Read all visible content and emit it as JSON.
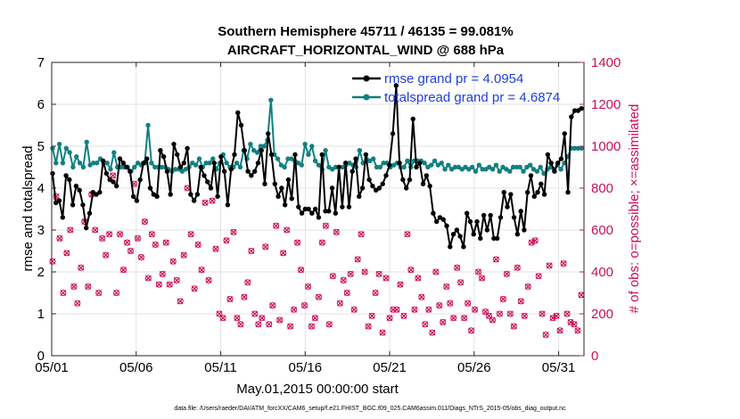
{
  "chart_data": {
    "type": "line",
    "title_line1": "Southern Hemisphere 45711 / 46135 = 99.081%",
    "title_line2": "AIRCRAFT_HORIZONTAL_WIND @ 688 hPa",
    "xlabel": "May.01,2015 00:00:00 start",
    "ylabel": "rmse and totalspread",
    "ylabel_right": "# of obs: o=possible; ×=assimilated",
    "xlim": [
      0,
      31.5
    ],
    "ylim": [
      0,
      7
    ],
    "ylim_right": [
      0,
      1400
    ],
    "x_tick_values": [
      0,
      5,
      10,
      15,
      20,
      25,
      30
    ],
    "x_tick_labels": [
      "05/01",
      "05/06",
      "05/11",
      "05/16",
      "05/21",
      "05/26",
      "05/31"
    ],
    "y_ticks": [
      "0",
      "1",
      "2",
      "3",
      "4",
      "5",
      "6",
      "7"
    ],
    "y_ticks_right": [
      "0",
      "200",
      "400",
      "600",
      "800",
      "1000",
      "1200",
      "1400"
    ],
    "legend_position": "top-right",
    "colors": {
      "rmse": "#000000",
      "spread": "#118080",
      "obs": "#c8105a",
      "legend_text": "#1f3fd8"
    },
    "series": [
      {
        "name": "rmse grand pr = 4.0954",
        "values": [
          4.35,
          3.65,
          3.7,
          3.3,
          4.3,
          4.2,
          3.6,
          4.05,
          3.95,
          3.6,
          3.05,
          3.4,
          3.9,
          3.85,
          3.9,
          4.65,
          4.35,
          4.2,
          4.15,
          4.05,
          4.7,
          4.6,
          4.5,
          4.4,
          3.8,
          3.7,
          4.2,
          4.6,
          4.7,
          4.0,
          3.85,
          3.8,
          4.9,
          4.75,
          4.4,
          3.85,
          5.05,
          4.8,
          4.5,
          4.6,
          4.95,
          3.85,
          3.7,
          3.85,
          4.5,
          4.3,
          4.15,
          4.0,
          4.6,
          3.8,
          4.75,
          4.4,
          3.6,
          4.45,
          4.8,
          5.8,
          5.5,
          4.9,
          4.4,
          4.3,
          4.4,
          4.6,
          4.9,
          4.1,
          5.3,
          4.8,
          4.1,
          3.8,
          4.0,
          3.6,
          4.2,
          3.75,
          4.8,
          3.55,
          3.4,
          3.5,
          3.5,
          3.4,
          3.5,
          3.3,
          4.8,
          3.45,
          3.45,
          4.0,
          3.4,
          4.5,
          3.55,
          4.6,
          3.55,
          4.4,
          4.7,
          3.8,
          4.0,
          4.8,
          4.2,
          4.05,
          3.95,
          4.0,
          4.1,
          4.3,
          4.55,
          5.3,
          6.45,
          4.6,
          4.2,
          4.0,
          4.2,
          5.65,
          4.5,
          4.6,
          4.1,
          4.3,
          4.05,
          3.4,
          3.2,
          3.3,
          3.25,
          3.1,
          2.6,
          2.9,
          3.0,
          2.85,
          2.6,
          3.4,
          3.2,
          2.9,
          3.2,
          2.8,
          3.35,
          3.0,
          3.35,
          2.8,
          2.8,
          3.3,
          3.9,
          3.55,
          3.85,
          3.3,
          2.9,
          3.45,
          3.0,
          3.9,
          4.3,
          3.8,
          3.9,
          4.1,
          3.85,
          4.8,
          4.6,
          4.4,
          4.6,
          4.7,
          5.3,
          3.9,
          5.7,
          5.85,
          5.85,
          5.9
        ]
      },
      {
        "name": "totalspread grand pr = 4.6874",
        "values": [
          4.95,
          4.6,
          5.05,
          4.6,
          4.95,
          4.85,
          4.5,
          4.75,
          4.6,
          4.5,
          5.1,
          4.55,
          4.6,
          4.6,
          4.7,
          4.6,
          4.6,
          4.45,
          4.85,
          4.5,
          4.5,
          4.5,
          4.5,
          4.4,
          4.5,
          4.6,
          4.55,
          4.6,
          5.5,
          4.6,
          4.5,
          4.5,
          4.5,
          4.5,
          4.45,
          4.4,
          4.45,
          4.45,
          4.4,
          4.45,
          4.5,
          4.6,
          4.55,
          4.7,
          4.5,
          4.6,
          4.6,
          4.7,
          4.45,
          4.6,
          4.8,
          4.6,
          4.5,
          4.5,
          4.6,
          4.5,
          4.9,
          4.7,
          5.05,
          4.9,
          4.85,
          5.0,
          5.0,
          5.15,
          6.1,
          4.8,
          4.7,
          4.55,
          4.5,
          4.7,
          4.7,
          4.65,
          4.6,
          4.55,
          5.05,
          4.8,
          5.0,
          4.65,
          4.55,
          4.45,
          4.9,
          4.5,
          4.45,
          4.5,
          4.5,
          4.5,
          4.55,
          4.6,
          4.55,
          4.5,
          4.9,
          4.6,
          4.7,
          4.65,
          4.7,
          4.5,
          4.5,
          4.6,
          4.6,
          4.5,
          4.55,
          4.6,
          4.5,
          4.5,
          4.65,
          4.5,
          4.65,
          4.65,
          4.65,
          4.6,
          4.5,
          4.55,
          4.65,
          4.55,
          4.6,
          4.45,
          4.55,
          4.45,
          4.5,
          4.5,
          4.45,
          4.5,
          4.45,
          4.5,
          4.4,
          4.55,
          4.45,
          4.45,
          4.5,
          4.45,
          4.55,
          4.4,
          4.5,
          4.45,
          4.4,
          4.5,
          4.5,
          4.5,
          4.4,
          4.5,
          4.55,
          4.45,
          4.4,
          4.5,
          4.35,
          4.45,
          4.5,
          4.45,
          4.55,
          4.45,
          4.6,
          4.75,
          4.95,
          4.95,
          4.95,
          4.95
        ]
      }
    ],
    "obs_possible": [
      450,
      760,
      560,
      300,
      490,
      600,
      330,
      250,
      420,
      640,
      330,
      770,
      600,
      300,
      560,
      480,
      580,
      860,
      300,
      580,
      410,
      540,
      500,
      820,
      560,
      470,
      640,
      370,
      580,
      530,
      340,
      390,
      540,
      340,
      450,
      360,
      260,
      480,
      800,
      580,
      320,
      530,
      410,
      730,
      360,
      740,
      510,
      200,
      180,
      550,
      270,
      590,
      180,
      150,
      280,
      350,
      500,
      200,
      150,
      180,
      520,
      150,
      240,
      620,
      170,
      490,
      600,
      140,
      220,
      540,
      410,
      240,
      330,
      140,
      180,
      280,
      540,
      620,
      150,
      380,
      590,
      250,
      360,
      300,
      390,
      220,
      460,
      580,
      400,
      140,
      190,
      300,
      390,
      110,
      370,
      180,
      220,
      220,
      340,
      190,
      580,
      410,
      220,
      370,
      280,
      150,
      220,
      110,
      400,
      240,
      160,
      330,
      250,
      180,
      420,
      350,
      180,
      250,
      120,
      220,
      400,
      370,
      210,
      190,
      170,
      460,
      200,
      270,
      390,
      200,
      140,
      420,
      260,
      190,
      330,
      540,
      550,
      380,
      200,
      100,
      430,
      180,
      190,
      120,
      440,
      200,
      160,
      150,
      120,
      290
    ]
  }
}
